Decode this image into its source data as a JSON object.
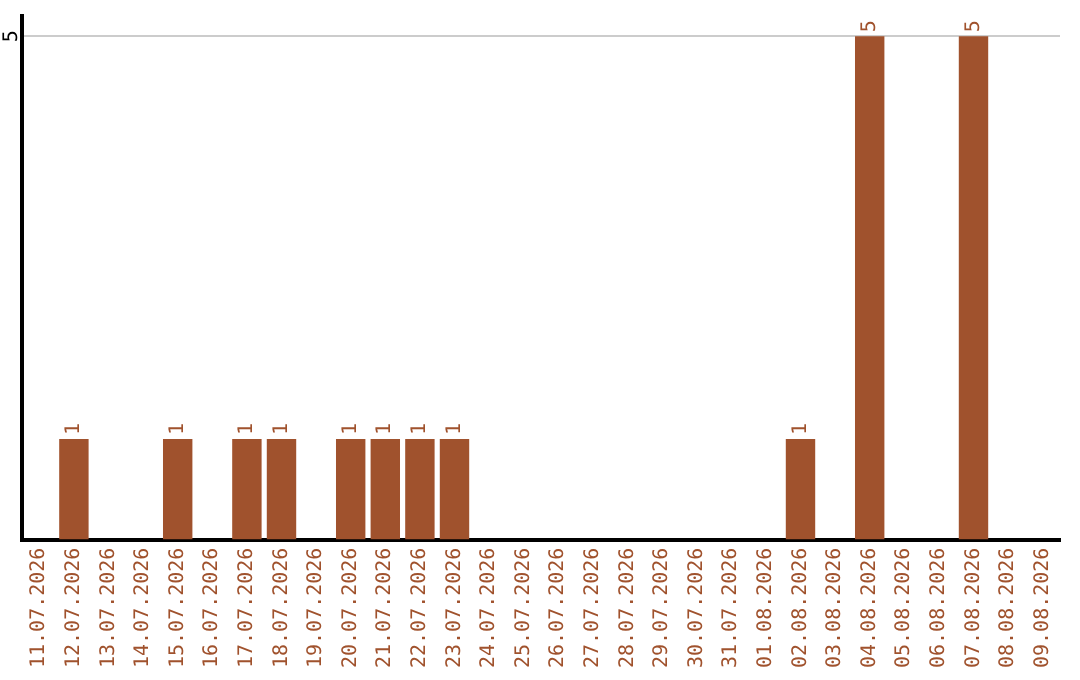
{
  "chart_data": {
    "type": "bar",
    "categories": [
      "11.07.2026",
      "12.07.2026",
      "13.07.2026",
      "14.07.2026",
      "15.07.2026",
      "16.07.2026",
      "17.07.2026",
      "18.07.2026",
      "19.07.2026",
      "20.07.2026",
      "21.07.2026",
      "22.07.2026",
      "23.07.2026",
      "24.07.2026",
      "25.07.2026",
      "26.07.2026",
      "27.07.2026",
      "28.07.2026",
      "29.07.2026",
      "30.07.2026",
      "31.07.2026",
      "01.08.2026",
      "02.08.2026",
      "03.08.2026",
      "04.08.2026",
      "05.08.2026",
      "06.08.2026",
      "07.08.2026",
      "08.08.2026",
      "09.08.2026"
    ],
    "values": [
      null,
      1,
      null,
      null,
      1,
      null,
      1,
      1,
      null,
      1,
      1,
      1,
      1,
      null,
      null,
      null,
      null,
      null,
      null,
      null,
      null,
      null,
      1,
      null,
      5,
      null,
      null,
      5,
      null,
      null
    ],
    "value_labels": [
      null,
      "1",
      null,
      null,
      "1",
      null,
      "1",
      "1",
      null,
      "1",
      "1",
      "1",
      "1",
      null,
      null,
      null,
      null,
      null,
      null,
      null,
      null,
      null,
      "1",
      null,
      "5",
      null,
      null,
      "5",
      null,
      null
    ],
    "color": "#a0522d",
    "ylim": [
      0,
      5.2
    ],
    "yticks": [
      5
    ],
    "grid": "y",
    "legend": false
  }
}
